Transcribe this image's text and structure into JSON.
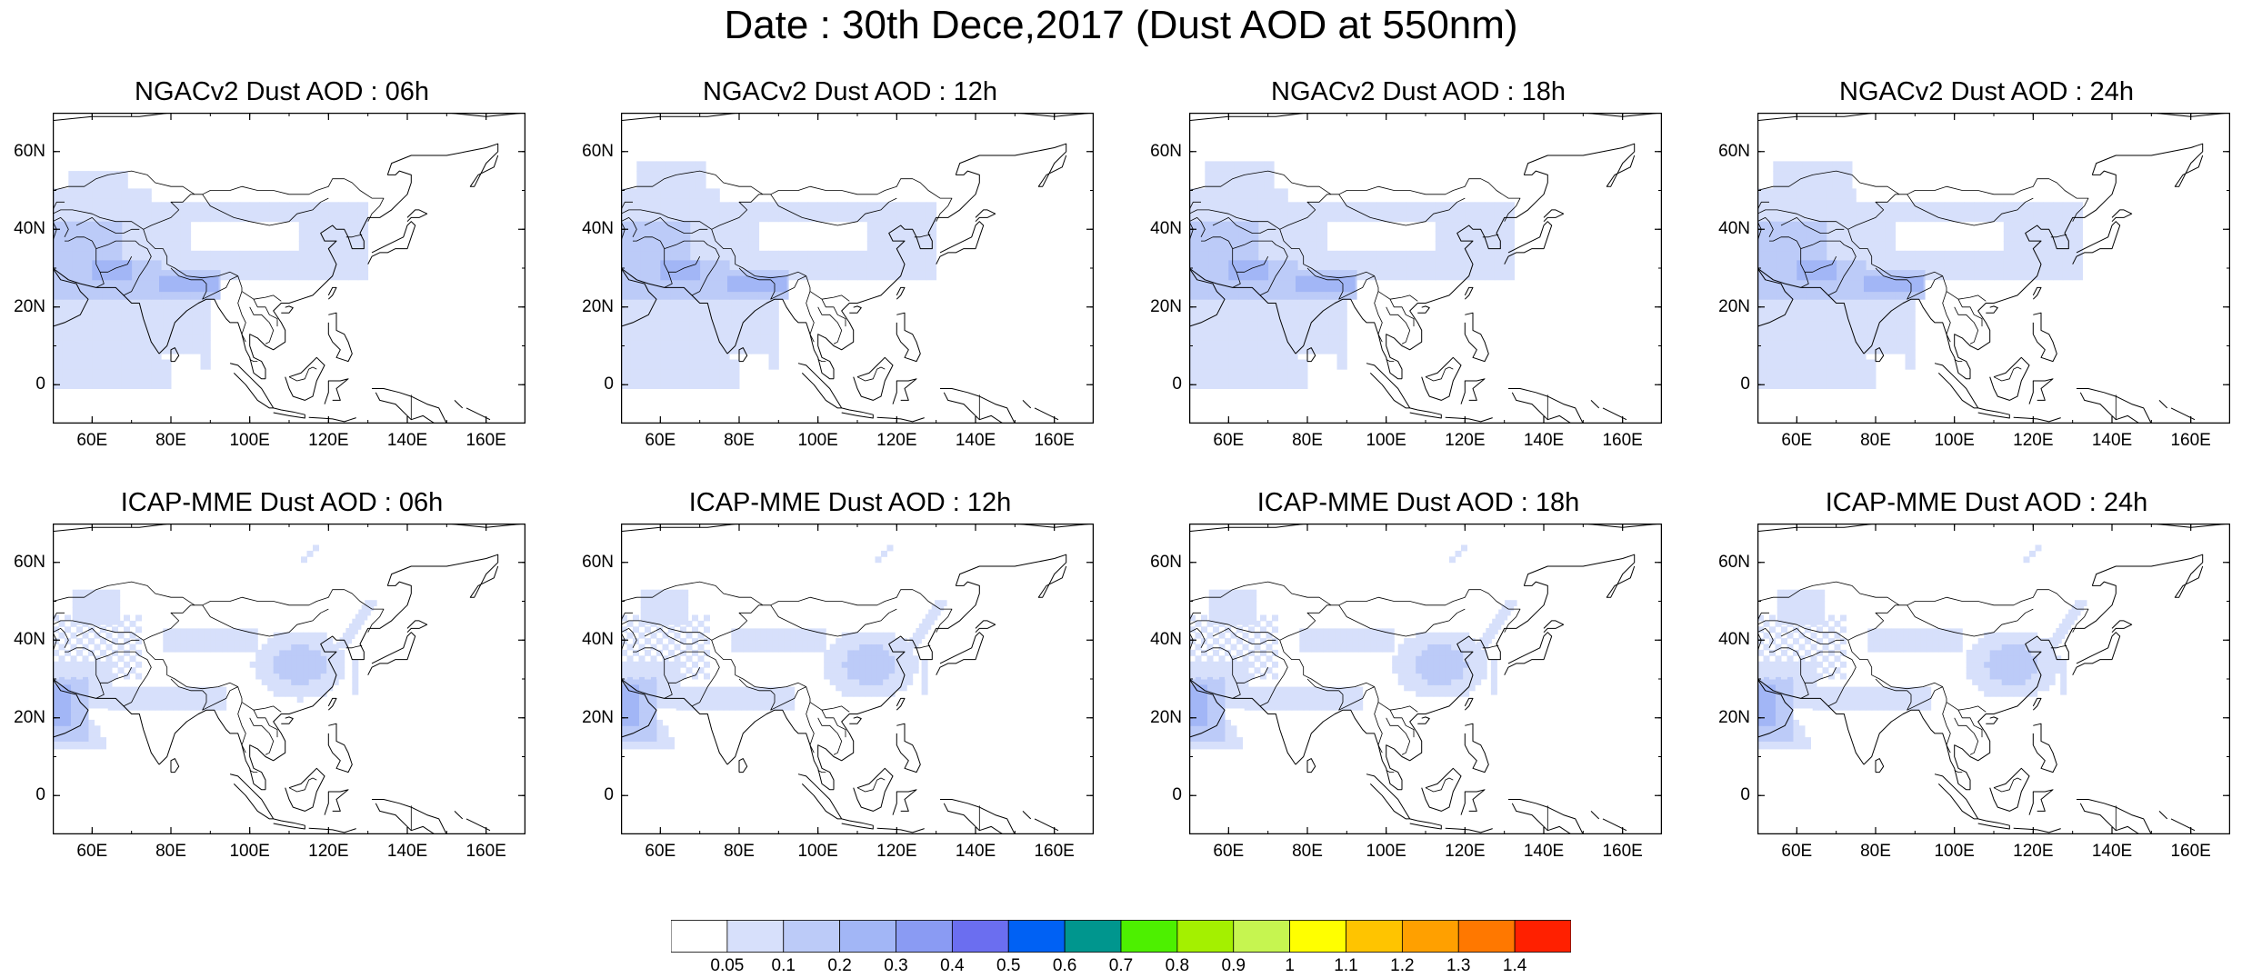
{
  "title": "Date : 30th Dece,2017 (Dust AOD at 550nm)",
  "lat_ticks": [
    "60N",
    "40N",
    "20N",
    "0"
  ],
  "lat_values": [
    60,
    40,
    20,
    0
  ],
  "lon_ticks": [
    "60E",
    "80E",
    "100E",
    "120E",
    "140E",
    "160E"
  ],
  "lon_values": [
    60,
    80,
    100,
    120,
    140,
    160
  ],
  "map_extent": {
    "lon": [
      50,
      170
    ],
    "lat": [
      -10,
      70
    ]
  },
  "panels": [
    {
      "id": "ngac-06",
      "title": "NGACv2 Dust AOD : 06h",
      "model": "ngac"
    },
    {
      "id": "ngac-12",
      "title": "NGACv2 Dust AOD : 12h",
      "model": "ngac"
    },
    {
      "id": "ngac-18",
      "title": "NGACv2 Dust AOD : 18h",
      "model": "ngac"
    },
    {
      "id": "ngac-24",
      "title": "NGACv2 Dust AOD : 24h",
      "model": "ngac"
    },
    {
      "id": "icap-06",
      "title": "ICAP-MME Dust AOD : 06h",
      "model": "icap"
    },
    {
      "id": "icap-12",
      "title": "ICAP-MME Dust AOD : 12h",
      "model": "icap"
    },
    {
      "id": "icap-18",
      "title": "ICAP-MME Dust AOD : 18h",
      "model": "icap"
    },
    {
      "id": "icap-24",
      "title": "ICAP-MME Dust AOD : 24h",
      "model": "icap"
    }
  ],
  "colorbar": {
    "labels": [
      "0.05",
      "0.1",
      "0.2",
      "0.3",
      "0.4",
      "0.5",
      "0.6",
      "0.7",
      "0.8",
      "0.9",
      "1",
      "1.1",
      "1.2",
      "1.3",
      "1.4"
    ],
    "colors": [
      "#ffffff",
      "#d7e0fb",
      "#bccbf8",
      "#a2b6f6",
      "#8a9bf3",
      "#6b6ef0",
      "#0061f4",
      "#00968e",
      "#4df000",
      "#a4f000",
      "#c6f550",
      "#ffff00",
      "#ffc400",
      "#ffa000",
      "#ff7800",
      "#ff2000"
    ]
  },
  "colors": {
    "light_dust": "#d7e0fb",
    "medium_dust": "#bccbf8",
    "heavy_dust": "#a2b6f6",
    "coast": "#000000"
  }
}
